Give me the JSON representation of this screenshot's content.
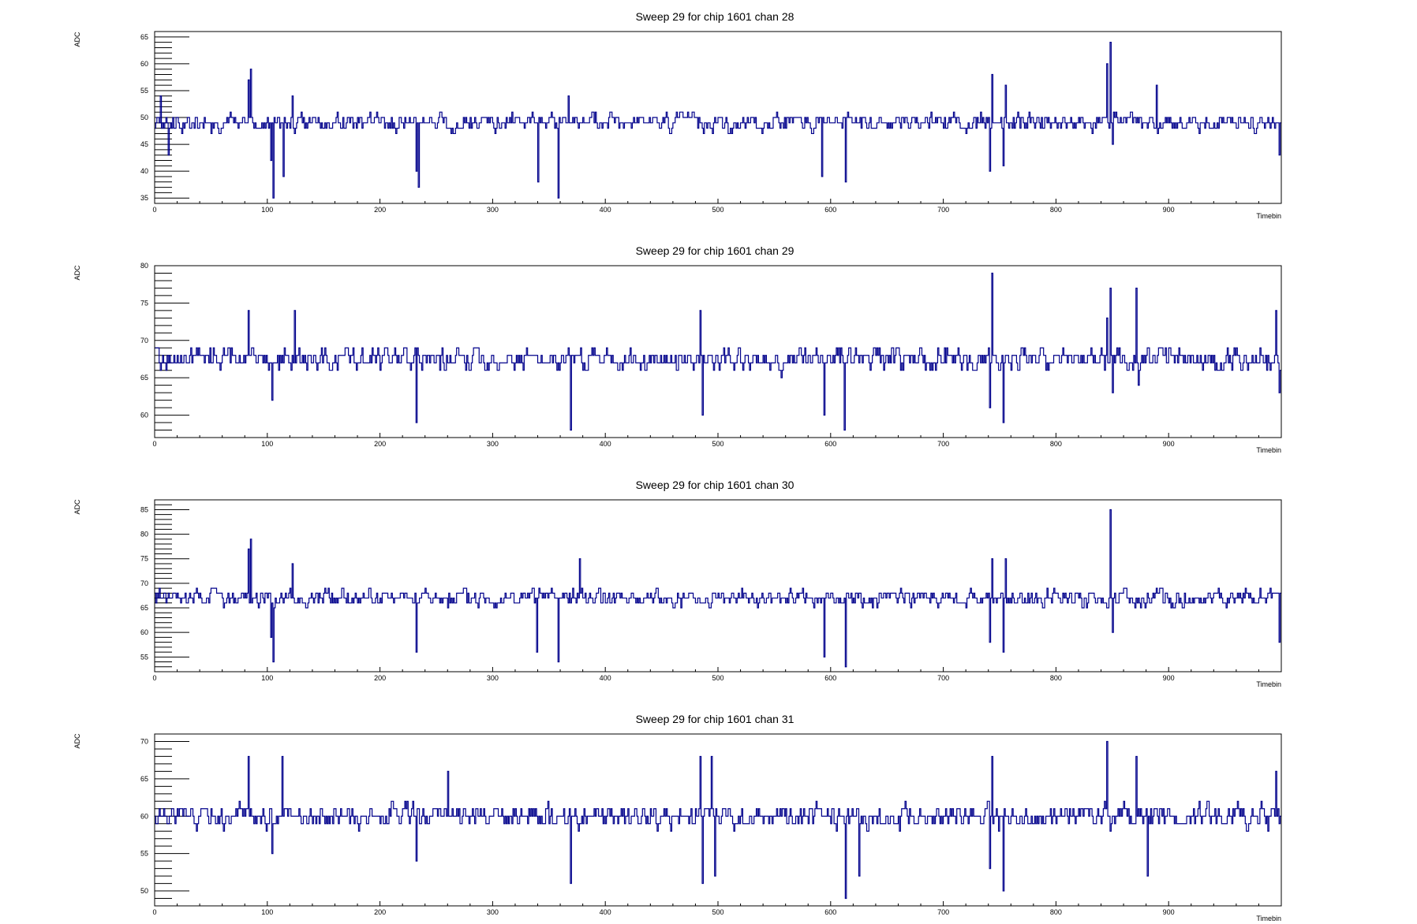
{
  "page": {
    "background": "#ffffff"
  },
  "style": {
    "line_color": "#00008b",
    "frame_color": "#000000"
  },
  "chart_data": [
    {
      "type": "line",
      "title": "Sweep 29 for chip 1601 chan 28",
      "xlabel": "Timebin",
      "ylabel": "ADC",
      "xlim": [
        0,
        1000
      ],
      "ylim": [
        34,
        66
      ],
      "xticks": [
        0,
        100,
        200,
        300,
        400,
        500,
        600,
        700,
        800,
        900
      ],
      "yticks": [
        35,
        40,
        45,
        50,
        55,
        60,
        65
      ],
      "baseline": 49,
      "noise": 2.2,
      "seed": 28,
      "spikes": [
        {
          "x": 5,
          "y": 54
        },
        {
          "x": 12,
          "y": 43
        },
        {
          "x": 83,
          "y": 57
        },
        {
          "x": 85,
          "y": 59
        },
        {
          "x": 103,
          "y": 42
        },
        {
          "x": 105,
          "y": 35
        },
        {
          "x": 114,
          "y": 39
        },
        {
          "x": 122,
          "y": 54
        },
        {
          "x": 232,
          "y": 40
        },
        {
          "x": 234,
          "y": 37
        },
        {
          "x": 340,
          "y": 38
        },
        {
          "x": 358,
          "y": 35
        },
        {
          "x": 367,
          "y": 54
        },
        {
          "x": 592,
          "y": 39
        },
        {
          "x": 613,
          "y": 38
        },
        {
          "x": 741,
          "y": 40
        },
        {
          "x": 743,
          "y": 58
        },
        {
          "x": 753,
          "y": 41
        },
        {
          "x": 755,
          "y": 56
        },
        {
          "x": 845,
          "y": 60
        },
        {
          "x": 848,
          "y": 64
        },
        {
          "x": 850,
          "y": 45
        },
        {
          "x": 889,
          "y": 56
        },
        {
          "x": 998,
          "y": 43
        }
      ]
    },
    {
      "type": "line",
      "title": "Sweep 29 for chip 1601 chan 29",
      "xlabel": "Timebin",
      "ylabel": "ADC",
      "xlim": [
        0,
        1000
      ],
      "ylim": [
        57,
        80
      ],
      "xticks": [
        0,
        100,
        200,
        300,
        400,
        500,
        600,
        700,
        800,
        900
      ],
      "yticks": [
        60,
        65,
        70,
        75,
        80
      ],
      "baseline": 67.5,
      "noise": 2.0,
      "seed": 29,
      "spikes": [
        {
          "x": 83,
          "y": 74
        },
        {
          "x": 104,
          "y": 62
        },
        {
          "x": 124,
          "y": 74
        },
        {
          "x": 232,
          "y": 59
        },
        {
          "x": 369,
          "y": 58
        },
        {
          "x": 484,
          "y": 74
        },
        {
          "x": 486,
          "y": 60
        },
        {
          "x": 594,
          "y": 60
        },
        {
          "x": 612,
          "y": 58
        },
        {
          "x": 741,
          "y": 61
        },
        {
          "x": 743,
          "y": 79
        },
        {
          "x": 753,
          "y": 59
        },
        {
          "x": 845,
          "y": 73
        },
        {
          "x": 848,
          "y": 77
        },
        {
          "x": 850,
          "y": 63
        },
        {
          "x": 871,
          "y": 77
        },
        {
          "x": 873,
          "y": 64
        },
        {
          "x": 995,
          "y": 74
        },
        {
          "x": 998,
          "y": 63
        }
      ]
    },
    {
      "type": "line",
      "title": "Sweep 29 for chip 1601 chan 30",
      "xlabel": "Timebin",
      "ylabel": "ADC",
      "xlim": [
        0,
        1000
      ],
      "ylim": [
        52,
        87
      ],
      "xticks": [
        0,
        100,
        200,
        300,
        400,
        500,
        600,
        700,
        800,
        900
      ],
      "yticks": [
        55,
        60,
        65,
        70,
        75,
        80,
        85
      ],
      "baseline": 67,
      "noise": 2.4,
      "seed": 30,
      "spikes": [
        {
          "x": 83,
          "y": 77
        },
        {
          "x": 85,
          "y": 79
        },
        {
          "x": 103,
          "y": 59
        },
        {
          "x": 105,
          "y": 54
        },
        {
          "x": 122,
          "y": 74
        },
        {
          "x": 232,
          "y": 56
        },
        {
          "x": 339,
          "y": 56
        },
        {
          "x": 358,
          "y": 54
        },
        {
          "x": 377,
          "y": 75
        },
        {
          "x": 594,
          "y": 55
        },
        {
          "x": 613,
          "y": 53
        },
        {
          "x": 741,
          "y": 58
        },
        {
          "x": 743,
          "y": 75
        },
        {
          "x": 753,
          "y": 56
        },
        {
          "x": 755,
          "y": 75
        },
        {
          "x": 848,
          "y": 85
        },
        {
          "x": 850,
          "y": 60
        },
        {
          "x": 998,
          "y": 58
        }
      ]
    },
    {
      "type": "line",
      "title": "Sweep 29 for chip 1601 chan 31",
      "xlabel": "Timebin",
      "ylabel": "ADC",
      "xlim": [
        0,
        1000
      ],
      "ylim": [
        48,
        71
      ],
      "xticks": [
        0,
        100,
        200,
        300,
        400,
        500,
        600,
        700,
        800,
        900
      ],
      "yticks": [
        50,
        55,
        60,
        65,
        70
      ],
      "baseline": 60,
      "noise": 2.0,
      "seed": 31,
      "spikes": [
        {
          "x": 83,
          "y": 68
        },
        {
          "x": 104,
          "y": 55
        },
        {
          "x": 113,
          "y": 68
        },
        {
          "x": 232,
          "y": 54
        },
        {
          "x": 260,
          "y": 66
        },
        {
          "x": 369,
          "y": 51
        },
        {
          "x": 484,
          "y": 68
        },
        {
          "x": 486,
          "y": 51
        },
        {
          "x": 494,
          "y": 68
        },
        {
          "x": 497,
          "y": 52
        },
        {
          "x": 613,
          "y": 49
        },
        {
          "x": 625,
          "y": 52
        },
        {
          "x": 741,
          "y": 53
        },
        {
          "x": 743,
          "y": 68
        },
        {
          "x": 753,
          "y": 50
        },
        {
          "x": 845,
          "y": 70
        },
        {
          "x": 848,
          "y": 58
        },
        {
          "x": 871,
          "y": 68
        },
        {
          "x": 881,
          "y": 52
        },
        {
          "x": 995,
          "y": 66
        },
        {
          "x": 998,
          "y": 59
        }
      ]
    }
  ]
}
